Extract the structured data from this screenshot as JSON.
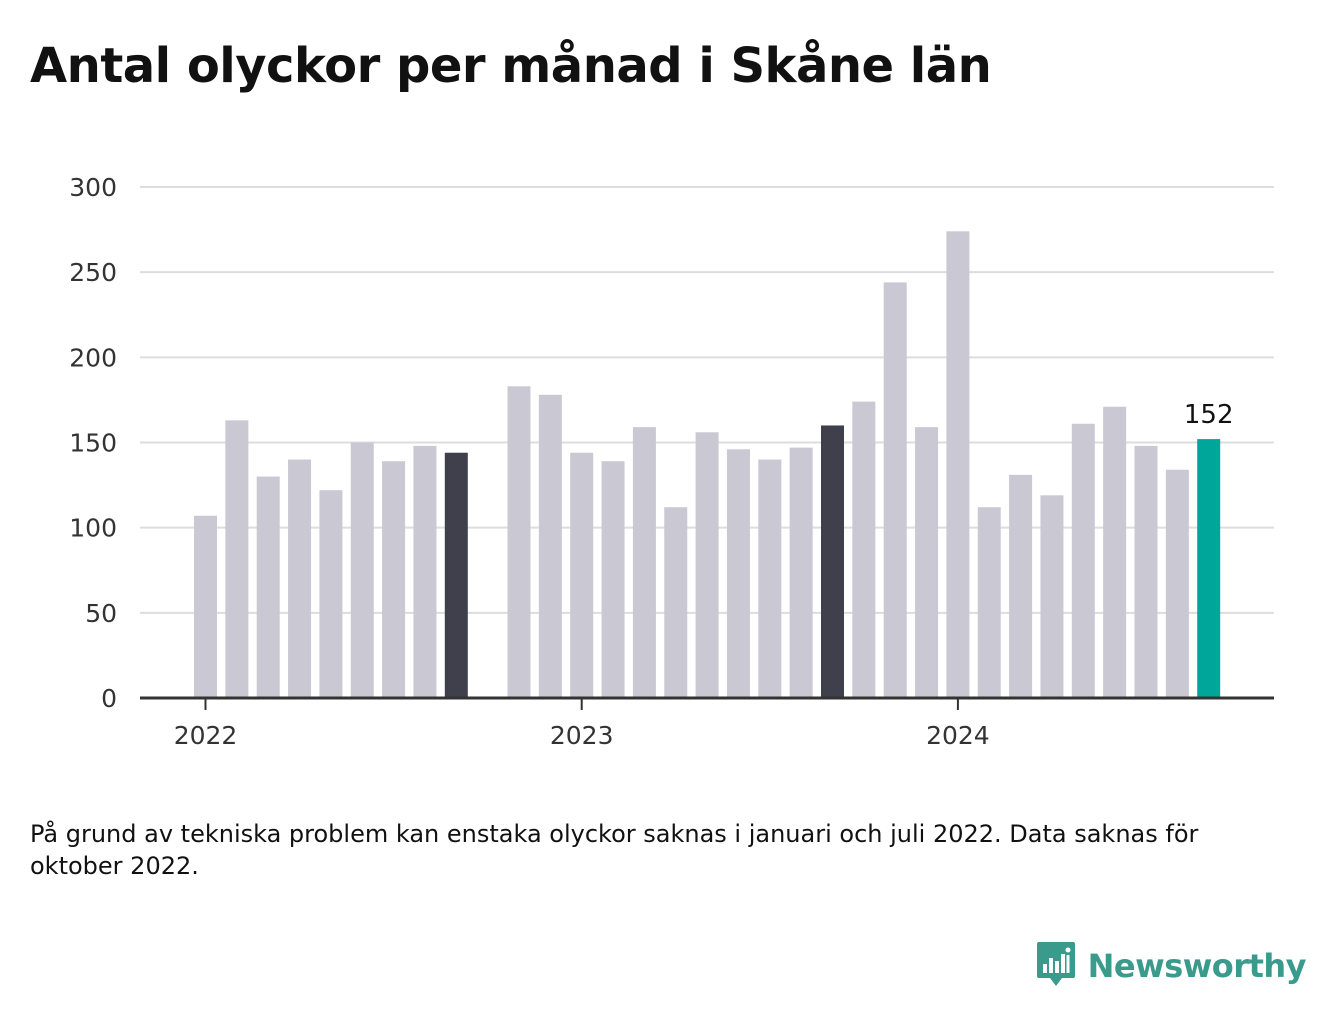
{
  "title": "Antal olyckor per månad i Skåne län",
  "note": "På grund av tekniska problem kan enstaka olyckor saknas i januari och juli 2022. Data saknas för oktober 2022.",
  "brand": {
    "name": "Newsworthy",
    "icon": "newsworthy-logo-icon",
    "color": "#3a9a8c"
  },
  "colors": {
    "bar": "#c9c8d3",
    "highlight": "#403f4c",
    "latest": "#00a69a",
    "grid": "#dddddd",
    "axis": "#333333"
  },
  "chart_data": {
    "type": "bar",
    "title": "Antal olyckor per månad i Skåne län",
    "xlabel": "",
    "ylabel": "",
    "ylim": [
      0,
      300
    ],
    "yticks": [
      0,
      50,
      100,
      150,
      200,
      250,
      300
    ],
    "grid": true,
    "legend": "none",
    "x_ticks": [
      {
        "label": "2022",
        "category": "2022-01"
      },
      {
        "label": "2023",
        "category": "2023-01"
      },
      {
        "label": "2024",
        "category": "2024-01"
      }
    ],
    "categories": [
      "2022-01",
      "2022-02",
      "2022-03",
      "2022-04",
      "2022-05",
      "2022-06",
      "2022-07",
      "2022-08",
      "2022-09",
      "2022-10",
      "2022-11",
      "2022-12",
      "2023-01",
      "2023-02",
      "2023-03",
      "2023-04",
      "2023-05",
      "2023-06",
      "2023-07",
      "2023-08",
      "2023-09",
      "2023-10",
      "2023-11",
      "2023-12",
      "2024-01",
      "2024-02",
      "2024-03",
      "2024-04",
      "2024-05",
      "2024-06",
      "2024-07",
      "2024-08",
      "2024-09"
    ],
    "values": [
      107,
      163,
      130,
      140,
      122,
      150,
      139,
      148,
      144,
      null,
      183,
      178,
      144,
      139,
      159,
      112,
      156,
      146,
      140,
      147,
      160,
      174,
      244,
      159,
      274,
      112,
      131,
      119,
      161,
      171,
      148,
      134,
      152
    ],
    "highlighted": [
      "2022-09",
      "2023-09"
    ],
    "latest": "2024-09",
    "latest_label": "152"
  }
}
